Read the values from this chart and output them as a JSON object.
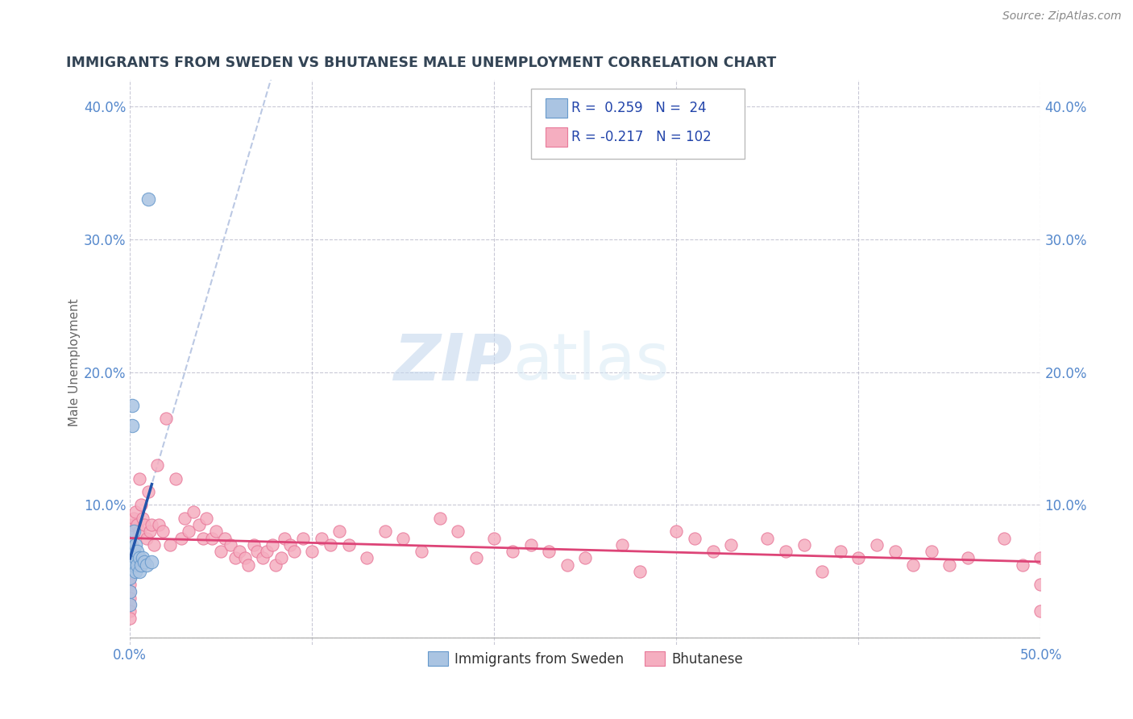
{
  "title": "IMMIGRANTS FROM SWEDEN VS BHUTANESE MALE UNEMPLOYMENT CORRELATION CHART",
  "source": "Source: ZipAtlas.com",
  "ylabel": "Male Unemployment",
  "xlim": [
    0.0,
    0.5
  ],
  "ylim": [
    -0.005,
    0.42
  ],
  "x_ticks": [
    0.0,
    0.1,
    0.2,
    0.3,
    0.4,
    0.5
  ],
  "x_tick_labels": [
    "0.0%",
    "",
    "",
    "",
    "",
    "50.0%"
  ],
  "y_ticks": [
    0.0,
    0.1,
    0.2,
    0.3,
    0.4
  ],
  "y_tick_labels_left": [
    "",
    "10.0%",
    "20.0%",
    "30.0%",
    "40.0%"
  ],
  "y_tick_labels_right": [
    "",
    "10.0%",
    "20.0%",
    "30.0%",
    "40.0%"
  ],
  "sweden_fill_color": "#aac4e2",
  "sweden_edge_color": "#6699cc",
  "bhutan_fill_color": "#f5aec0",
  "bhutan_edge_color": "#e8799a",
  "sweden_trend_color": "#2255aa",
  "sweden_dashed_color": "#aabbdd",
  "bhutan_trend_color": "#dd4477",
  "legend_R_sweden": "0.259",
  "legend_N_sweden": "24",
  "legend_R_bhutan": "-0.217",
  "legend_N_bhutan": "102",
  "background_color": "#ffffff",
  "grid_color": "#bbbbcc",
  "title_color": "#334455",
  "tick_color": "#5588cc",
  "sweden_scatter_x": [
    0.0,
    0.0,
    0.0,
    0.0,
    0.0,
    0.001,
    0.001,
    0.001,
    0.002,
    0.002,
    0.002,
    0.003,
    0.003,
    0.003,
    0.004,
    0.004,
    0.005,
    0.005,
    0.006,
    0.007,
    0.008,
    0.009,
    0.01,
    0.012
  ],
  "sweden_scatter_y": [
    0.07,
    0.055,
    0.045,
    0.035,
    0.025,
    0.175,
    0.16,
    0.055,
    0.08,
    0.065,
    0.055,
    0.07,
    0.06,
    0.05,
    0.065,
    0.055,
    0.06,
    0.05,
    0.055,
    0.06,
    0.057,
    0.055,
    0.33,
    0.057
  ],
  "bhutan_scatter_x": [
    0.0,
    0.0,
    0.0,
    0.0,
    0.0,
    0.0,
    0.0,
    0.0,
    0.0,
    0.0,
    0.0,
    0.0,
    0.0,
    0.001,
    0.001,
    0.002,
    0.003,
    0.004,
    0.005,
    0.005,
    0.006,
    0.007,
    0.008,
    0.009,
    0.01,
    0.011,
    0.012,
    0.013,
    0.015,
    0.016,
    0.018,
    0.02,
    0.022,
    0.025,
    0.028,
    0.03,
    0.032,
    0.035,
    0.038,
    0.04,
    0.042,
    0.045,
    0.047,
    0.05,
    0.052,
    0.055,
    0.058,
    0.06,
    0.063,
    0.065,
    0.068,
    0.07,
    0.073,
    0.075,
    0.078,
    0.08,
    0.083,
    0.085,
    0.088,
    0.09,
    0.095,
    0.1,
    0.105,
    0.11,
    0.115,
    0.12,
    0.13,
    0.14,
    0.15,
    0.16,
    0.17,
    0.18,
    0.19,
    0.2,
    0.21,
    0.22,
    0.23,
    0.24,
    0.25,
    0.27,
    0.28,
    0.3,
    0.31,
    0.32,
    0.33,
    0.35,
    0.36,
    0.37,
    0.38,
    0.39,
    0.4,
    0.41,
    0.42,
    0.43,
    0.44,
    0.45,
    0.46,
    0.48,
    0.49,
    0.5,
    0.5,
    0.5
  ],
  "bhutan_scatter_y": [
    0.08,
    0.07,
    0.065,
    0.06,
    0.055,
    0.05,
    0.045,
    0.04,
    0.035,
    0.03,
    0.025,
    0.02,
    0.015,
    0.085,
    0.07,
    0.09,
    0.095,
    0.085,
    0.12,
    0.08,
    0.1,
    0.09,
    0.085,
    0.075,
    0.11,
    0.08,
    0.085,
    0.07,
    0.13,
    0.085,
    0.08,
    0.165,
    0.07,
    0.12,
    0.075,
    0.09,
    0.08,
    0.095,
    0.085,
    0.075,
    0.09,
    0.075,
    0.08,
    0.065,
    0.075,
    0.07,
    0.06,
    0.065,
    0.06,
    0.055,
    0.07,
    0.065,
    0.06,
    0.065,
    0.07,
    0.055,
    0.06,
    0.075,
    0.07,
    0.065,
    0.075,
    0.065,
    0.075,
    0.07,
    0.08,
    0.07,
    0.06,
    0.08,
    0.075,
    0.065,
    0.09,
    0.08,
    0.06,
    0.075,
    0.065,
    0.07,
    0.065,
    0.055,
    0.06,
    0.07,
    0.05,
    0.08,
    0.075,
    0.065,
    0.07,
    0.075,
    0.065,
    0.07,
    0.05,
    0.065,
    0.06,
    0.07,
    0.065,
    0.055,
    0.065,
    0.055,
    0.06,
    0.075,
    0.055,
    0.06,
    0.04,
    0.02
  ]
}
